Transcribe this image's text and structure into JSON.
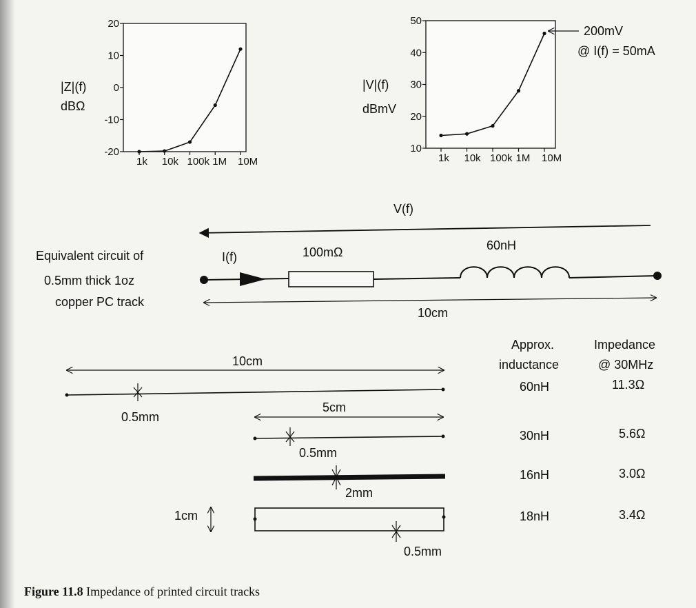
{
  "charts": {
    "impedance": {
      "ylabel_line1": "|Z|(f)",
      "ylabel_line2": "dBΩ",
      "ytick_labels": [
        "20",
        "10",
        "0",
        "-10",
        "-20"
      ],
      "xtick_labels": [
        "1k",
        "10k",
        "100k",
        "1M",
        "10M"
      ]
    },
    "voltage": {
      "ylabel_line1": "|V|(f)",
      "ylabel_line2": "dBmV",
      "ytick_labels": [
        "50",
        "40",
        "30",
        "20",
        "10"
      ],
      "xtick_labels": [
        "1k",
        "10k",
        "100k",
        "1M",
        "10M"
      ],
      "annotation_line1": "200mV",
      "annotation_line2": "@ I(f) = 50mA"
    }
  },
  "chart_data": [
    {
      "type": "line",
      "title": "",
      "xlabel": "",
      "ylabel": "|Z|(f) dBΩ",
      "x": [
        "1k",
        "10k",
        "100k",
        "1M",
        "10M"
      ],
      "y": [
        -20,
        -19.8,
        -17,
        -5.5,
        12
      ],
      "ylim": [
        -20,
        20
      ],
      "grid": false,
      "x_scale": "log"
    },
    {
      "type": "line",
      "title": "",
      "xlabel": "",
      "ylabel": "|V|(f) dBmV",
      "x": [
        "1k",
        "10k",
        "100k",
        "1M",
        "10M"
      ],
      "y": [
        14,
        14.5,
        17,
        28,
        46
      ],
      "ylim": [
        10,
        50
      ],
      "grid": false,
      "x_scale": "log",
      "annotations": [
        "200mV",
        "@ I(f) = 50mA"
      ]
    }
  ],
  "circuit": {
    "title_line1": "Equivalent circuit of",
    "title_line2": "0.5mm thick 1oz",
    "title_line3": "copper PC track",
    "voltage_label": "V(f)",
    "current_label": "I(f)",
    "resistor_label": "100mΩ",
    "inductor_label": "60nH",
    "length_label": "10cm"
  },
  "tracks": {
    "header_inductance_line1": "Approx.",
    "header_inductance_line2": "inductance",
    "header_impedance_line1": "Impedance",
    "header_impedance_line2": "@ 30MHz",
    "rows": [
      {
        "length_label": "10cm",
        "width_label": "0.5mm",
        "inductance": "60nH",
        "impedance": "11.3Ω"
      },
      {
        "length_label": "5cm",
        "width_label": "0.5mm",
        "inductance": "30nH",
        "impedance": "5.6Ω"
      },
      {
        "width_label": "2mm",
        "inductance": "16nH",
        "impedance": "3.0Ω"
      },
      {
        "height_label": "1cm",
        "width_label": "0.5mm",
        "inductance": "18nH",
        "impedance": "3.4Ω"
      }
    ]
  },
  "caption": {
    "figure": "Figure 11.8",
    "text": "Impedance of printed circuit tracks"
  }
}
